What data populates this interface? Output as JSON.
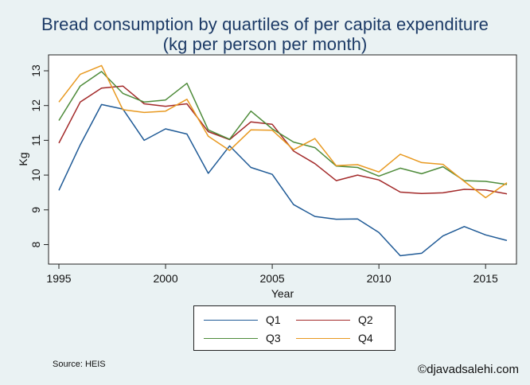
{
  "chart_data": {
    "type": "line",
    "title": "Bread consumption by quartiles of per capita expenditure",
    "subtitle": "(kg per person per month)",
    "xlabel": "Year",
    "ylabel": "Kg",
    "xlim": [
      1995,
      2016
    ],
    "ylim": [
      7.6,
      13.4
    ],
    "xticks": [
      1995,
      2000,
      2005,
      2010,
      2015
    ],
    "yticks": [
      8,
      9,
      10,
      11,
      12,
      13
    ],
    "grid": false,
    "legend_position": "bottom",
    "x": [
      1995,
      1996,
      1997,
      1998,
      1999,
      2000,
      2001,
      2002,
      2003,
      2004,
      2005,
      2006,
      2007,
      2008,
      2009,
      2010,
      2011,
      2012,
      2013,
      2014,
      2015,
      2016
    ],
    "series": [
      {
        "name": "Q1",
        "color": "#1f5a96",
        "values": [
          9.56,
          10.87,
          12.03,
          11.9,
          11.0,
          11.33,
          11.18,
          10.05,
          10.84,
          10.22,
          10.02,
          9.15,
          8.81,
          8.73,
          8.74,
          8.35,
          7.68,
          7.75,
          8.25,
          8.52,
          8.28,
          8.12
        ]
      },
      {
        "name": "Q2",
        "color": "#a32a2a",
        "values": [
          10.92,
          12.1,
          12.5,
          12.56,
          12.05,
          11.98,
          12.05,
          11.25,
          11.02,
          11.53,
          11.46,
          10.69,
          10.33,
          9.84,
          10.0,
          9.86,
          9.51,
          9.47,
          9.49,
          9.59,
          9.57,
          9.46
        ]
      },
      {
        "name": "Q3",
        "color": "#4e8b3a",
        "values": [
          11.57,
          12.56,
          12.98,
          12.35,
          12.1,
          12.16,
          12.64,
          11.3,
          11.03,
          11.84,
          11.33,
          10.95,
          10.79,
          10.26,
          10.22,
          9.97,
          10.2,
          10.04,
          10.24,
          9.84,
          9.82,
          9.73
        ]
      },
      {
        "name": "Q4",
        "color": "#e89920",
        "values": [
          12.1,
          12.9,
          13.15,
          11.88,
          11.8,
          11.84,
          12.18,
          11.12,
          10.71,
          11.3,
          11.29,
          10.73,
          11.05,
          10.27,
          10.3,
          10.09,
          10.6,
          10.36,
          10.31,
          9.82,
          9.35,
          9.78
        ]
      }
    ]
  },
  "legend": {
    "q1": "Q1",
    "q2": "Q2",
    "q3": "Q3",
    "q4": "Q4"
  },
  "footer": {
    "source": "Source: HEIS",
    "credit": "©djavadsalehi.com"
  }
}
